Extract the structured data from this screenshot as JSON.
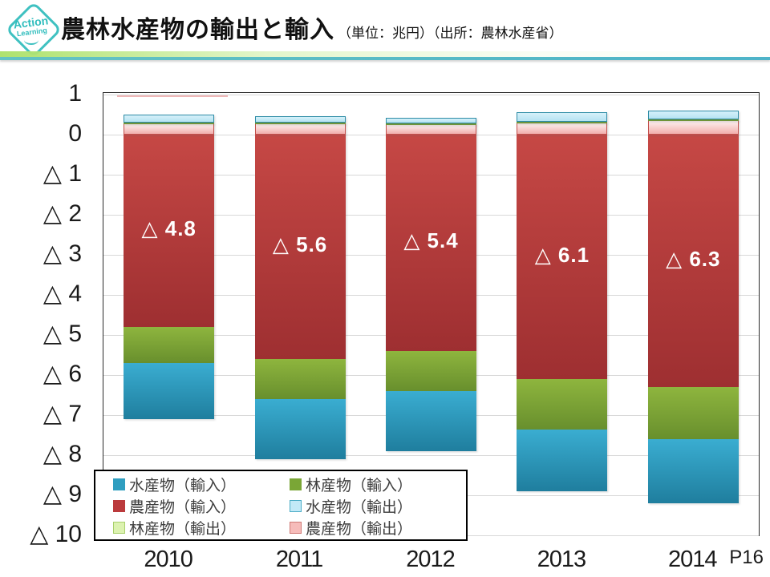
{
  "header": {
    "logo_line1": "Action",
    "logo_line2": "Learning",
    "title": "農林水産物の輸出と輸入",
    "subtitle": "（単位：兆円）（出所：農林水産省）"
  },
  "page_number": "P16",
  "chart_data": {
    "type": "bar",
    "stacked": true,
    "unit": "兆円",
    "title": "農林水産物の輸出と輸入（単位：兆円）",
    "source": "出所：農林水産省",
    "categories": [
      "2010",
      "2011",
      "2012",
      "2013",
      "2014"
    ],
    "series": [
      {
        "id": "agri-import",
        "name": "農産物（輸入）",
        "values": [
          -4.8,
          -5.6,
          -5.4,
          -6.1,
          -6.3
        ],
        "color_top": "#c64845",
        "color_bottom": "#9e2f31"
      },
      {
        "id": "forest-import",
        "name": "林産物（輸入）",
        "values": [
          -0.9,
          -1.0,
          -1.0,
          -1.25,
          -1.3
        ],
        "color_top": "#8eb53e",
        "color_bottom": "#688f2d"
      },
      {
        "id": "fish-import",
        "name": "水産物（輸入）",
        "values": [
          -1.4,
          -1.5,
          -1.5,
          -1.55,
          -1.6
        ],
        "color_top": "#3aadd1",
        "color_bottom": "#1f7e9e"
      },
      {
        "id": "agri-export",
        "name": "農産物（輸出）",
        "values": [
          0.29,
          0.29,
          0.27,
          0.31,
          0.36
        ],
        "color_top": "#fdf2f1",
        "color_bottom": "#f2aeac",
        "border": "#c3504c"
      },
      {
        "id": "forest-export",
        "name": "林産物（輸出）",
        "values": [
          0.02,
          0.02,
          0.02,
          0.02,
          0.02
        ],
        "color_top": "#cfe8a2",
        "color_bottom": "#b4d87e",
        "border": "#6f9a33"
      },
      {
        "id": "fish-export",
        "name": "水産物（輸出）",
        "values": [
          0.19,
          0.15,
          0.14,
          0.24,
          0.23
        ],
        "color_top": "#d6f1fa",
        "color_bottom": "#b5e3f2",
        "border": "#2e8ca6"
      }
    ],
    "data_labels": [
      "△ 4.8",
      "△ 5.6",
      "△ 5.4",
      "△ 6.1",
      "△ 6.3"
    ],
    "y_tick_labels": [
      "1",
      "0",
      "△ 1",
      "△ 2",
      "△ 3",
      "△ 4",
      "△ 5",
      "△ 6",
      "△ 7",
      "△ 8",
      "△ 9",
      "△ 10"
    ],
    "ylim": [
      -10,
      1
    ],
    "grid": true,
    "legend_position": "inside-bottom-left"
  },
  "legend": {
    "columns": [
      [
        {
          "label": "水産物（輸入）",
          "fill": "#2f9ec0",
          "border": "#2f9ec0"
        },
        {
          "label": "農産物（輸入）",
          "fill": "#bb3a3c",
          "border": "#bb3a3c"
        },
        {
          "label": "林産物（輸出）",
          "fill": "#dcf2b0",
          "border": "#a8d06a"
        }
      ],
      [
        {
          "label": "林産物（輸入）",
          "fill": "#7aa636",
          "border": "#7aa636"
        },
        {
          "label": "水産物（輸出）",
          "fill": "#c2e9f7",
          "border": "#4bacc6"
        },
        {
          "label": "農産物（輸出）",
          "fill": "#f6bcba",
          "border": "#cf7a76"
        }
      ]
    ]
  }
}
